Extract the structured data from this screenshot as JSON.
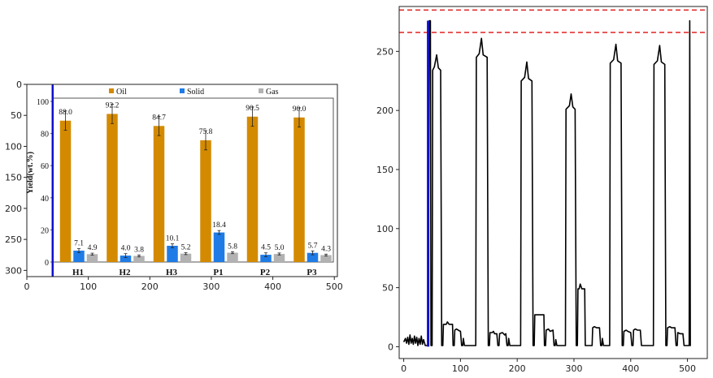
{
  "chart_data": [
    {
      "type": "bar",
      "note_kind": "embedded bar chart image inside axes (image pixel coordinates)",
      "outer_axes": {
        "xticks": [
          0,
          100,
          200,
          300,
          400,
          500
        ],
        "yticks": [
          0,
          50,
          100,
          150,
          200,
          250,
          300
        ],
        "xlim": [
          0,
          505
        ],
        "ylim": [
          310,
          0
        ],
        "vertical_line_x": 42
      },
      "inner": {
        "ylabel": "Yield(wt.%)",
        "yticks": [
          0,
          20,
          40,
          60,
          80,
          100
        ],
        "ylim": [
          0,
          100
        ],
        "categories": [
          "H1",
          "H2",
          "H3",
          "P1",
          "P2",
          "P3"
        ],
        "legend": {
          "placement": "top",
          "entries": [
            "Oil",
            "Solid",
            "Gas"
          ]
        },
        "series": [
          {
            "name": "Oil",
            "color": "#d48a00",
            "values": [
              88.0,
              92.2,
              84.7,
              75.8,
              90.5,
              90.0
            ],
            "labels": [
              "88.0",
              "92.2",
              "84.7",
              "75.8",
              "90.5",
              "90.0"
            ]
          },
          {
            "name": "Solid",
            "color": "#1f7be6",
            "values": [
              7.1,
              4.0,
              10.1,
              18.4,
              4.5,
              5.7
            ],
            "labels": [
              "7.1",
              "4.0",
              "10.1",
              "18.4",
              "4.5",
              "5.7"
            ]
          },
          {
            "name": "Gas",
            "color": "#b2b2b2",
            "values": [
              4.9,
              3.8,
              5.2,
              5.8,
              5.0,
              4.3
            ],
            "labels": [
              "4.9",
              "3.8",
              "5.2",
              "5.8",
              "5.0",
              "4.3"
            ]
          }
        ]
      }
    },
    {
      "type": "line",
      "xticks": [
        0,
        100,
        200,
        300,
        400,
        500
      ],
      "yticks": [
        0,
        50,
        100,
        150,
        200,
        250
      ],
      "xlim": [
        -8,
        535
      ],
      "ylim": [
        -10,
        288
      ],
      "hlines": {
        "style": "dashed",
        "color": "#e02020",
        "y": [
          285,
          266
        ]
      },
      "series_color": "#000000",
      "highlight": {
        "color": "#1010cc",
        "x": [
          42,
          44
        ],
        "y": [
          0,
          276
        ]
      },
      "points": [
        [
          0,
          4
        ],
        [
          3,
          7
        ],
        [
          5,
          3
        ],
        [
          7,
          8
        ],
        [
          9,
          2
        ],
        [
          11,
          10
        ],
        [
          13,
          3
        ],
        [
          15,
          7
        ],
        [
          17,
          2
        ],
        [
          19,
          9
        ],
        [
          21,
          3
        ],
        [
          23,
          8
        ],
        [
          25,
          1
        ],
        [
          27,
          7
        ],
        [
          29,
          2
        ],
        [
          31,
          9
        ],
        [
          33,
          2
        ],
        [
          35,
          6
        ],
        [
          38,
          1
        ],
        [
          40,
          1
        ],
        [
          43,
          1
        ],
        [
          45,
          276
        ],
        [
          47,
          276
        ],
        [
          48,
          1
        ],
        [
          50,
          1
        ],
        [
          51,
          234
        ],
        [
          54,
          237
        ],
        [
          58,
          247
        ],
        [
          61,
          236
        ],
        [
          65,
          234
        ],
        [
          67,
          1
        ],
        [
          69,
          1
        ],
        [
          70,
          19
        ],
        [
          75,
          19
        ],
        [
          77,
          21
        ],
        [
          80,
          19
        ],
        [
          86,
          19
        ],
        [
          87,
          1
        ],
        [
          89,
          1
        ],
        [
          90,
          14
        ],
        [
          93,
          15
        ],
        [
          96,
          14
        ],
        [
          100,
          13
        ],
        [
          102,
          1
        ],
        [
          104,
          1
        ],
        [
          105,
          7
        ],
        [
          107,
          1
        ],
        [
          110,
          1
        ],
        [
          127,
          1
        ],
        [
          128,
          245
        ],
        [
          133,
          248
        ],
        [
          137,
          261
        ],
        [
          140,
          247
        ],
        [
          147,
          245
        ],
        [
          149,
          1
        ],
        [
          151,
          1
        ],
        [
          152,
          12
        ],
        [
          156,
          12
        ],
        [
          158,
          13
        ],
        [
          160,
          11
        ],
        [
          164,
          11
        ],
        [
          166,
          1
        ],
        [
          168,
          1
        ],
        [
          169,
          11
        ],
        [
          174,
          12
        ],
        [
          178,
          10
        ],
        [
          180,
          11
        ],
        [
          182,
          1
        ],
        [
          184,
          1
        ],
        [
          185,
          7
        ],
        [
          187,
          1
        ],
        [
          190,
          1
        ],
        [
          206,
          1
        ],
        [
          207,
          225
        ],
        [
          213,
          228
        ],
        [
          217,
          241
        ],
        [
          220,
          227
        ],
        [
          226,
          225
        ],
        [
          228,
          1
        ],
        [
          230,
          1
        ],
        [
          231,
          27
        ],
        [
          236,
          27
        ],
        [
          240,
          27
        ],
        [
          247,
          27
        ],
        [
          248,
          1
        ],
        [
          250,
          1
        ],
        [
          251,
          14
        ],
        [
          255,
          15
        ],
        [
          258,
          13
        ],
        [
          263,
          14
        ],
        [
          265,
          1
        ],
        [
          267,
          1
        ],
        [
          268,
          6
        ],
        [
          270,
          1
        ],
        [
          285,
          1
        ],
        [
          286,
          201
        ],
        [
          292,
          204
        ],
        [
          295,
          214
        ],
        [
          298,
          203
        ],
        [
          302,
          201
        ],
        [
          304,
          1
        ],
        [
          306,
          1
        ],
        [
          307,
          49
        ],
        [
          309,
          49
        ],
        [
          311,
          53
        ],
        [
          314,
          49
        ],
        [
          319,
          49
        ],
        [
          320,
          1
        ],
        [
          322,
          1
        ],
        [
          332,
          1
        ],
        [
          333,
          16
        ],
        [
          336,
          17
        ],
        [
          340,
          16
        ],
        [
          345,
          16
        ],
        [
          347,
          1
        ],
        [
          349,
          1
        ],
        [
          350,
          7
        ],
        [
          352,
          1
        ],
        [
          363,
          1
        ],
        [
          364,
          240
        ],
        [
          370,
          243
        ],
        [
          374,
          256
        ],
        [
          377,
          242
        ],
        [
          383,
          240
        ],
        [
          385,
          1
        ],
        [
          387,
          1
        ],
        [
          388,
          13
        ],
        [
          392,
          14
        ],
        [
          395,
          13
        ],
        [
          400,
          12
        ],
        [
          402,
          1
        ],
        [
          404,
          1
        ],
        [
          405,
          14
        ],
        [
          408,
          15
        ],
        [
          412,
          14
        ],
        [
          417,
          14
        ],
        [
          419,
          1
        ],
        [
          440,
          1
        ],
        [
          441,
          239
        ],
        [
          447,
          242
        ],
        [
          451,
          255
        ],
        [
          454,
          241
        ],
        [
          460,
          239
        ],
        [
          462,
          1
        ],
        [
          464,
          1
        ],
        [
          465,
          16
        ],
        [
          469,
          17
        ],
        [
          472,
          16
        ],
        [
          478,
          16
        ],
        [
          480,
          1
        ],
        [
          482,
          1
        ],
        [
          483,
          12
        ],
        [
          487,
          11
        ],
        [
          492,
          11
        ],
        [
          494,
          1
        ],
        [
          496,
          1
        ],
        [
          498,
          1
        ],
        [
          500,
          1
        ],
        [
          503,
          1
        ],
        [
          504,
          276
        ],
        [
          505,
          1
        ],
        [
          506,
          1
        ]
      ]
    }
  ]
}
